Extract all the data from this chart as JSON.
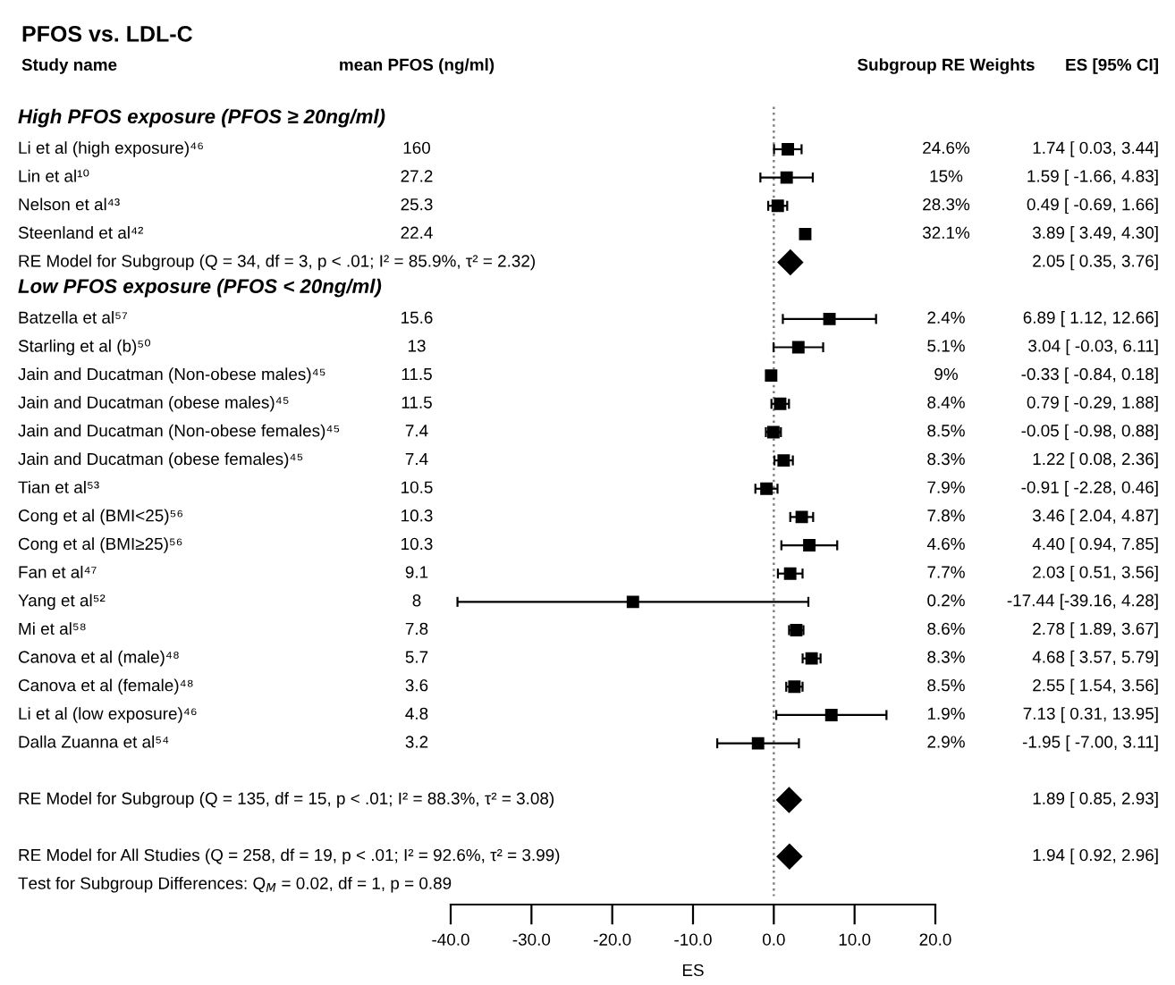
{
  "chart_data": {
    "type": "scatter",
    "orientation": "horizontal",
    "title": "PFOS vs. LDL-C",
    "xlabel": "ES",
    "categories": [
      "High PFOS exposure (PFOS ≥ 20ng/ml)",
      "Li et al (high exposure)⁴⁶",
      "Lin et al¹⁰",
      "Nelson et al⁴³",
      "Steenland et al⁴²",
      "RE Model for Subgroup (Q = 34, df = 3, p < .01; I² = 85.9%, τ² = 2.32)",
      "Low PFOS exposure (PFOS < 20ng/ml)",
      "Batzella et al⁵⁷",
      "Starling et al (b)⁵⁰",
      "Jain and Ducatman (Non-obese males)⁴⁵",
      "Jain and Ducatman (obese males)⁴⁵",
      "Jain and Ducatman (Non-obese females)⁴⁵",
      "Jain and Ducatman (obese females)⁴⁵",
      "Tian et al⁵³",
      "Cong et al (BMI<25)⁵⁶",
      "Cong et al (BMI≥25)⁵⁶",
      "Fan et al⁴⁷",
      "Yang et al⁵²",
      "Mi et al⁵⁸",
      "Canova et al (male)⁴⁸",
      "Canova et al (female)⁴⁸",
      "Li et al (low exposure)⁴⁶",
      "Dalla Zuanna et al⁵⁴",
      null,
      "RE Model for Subgroup (Q = 135, df = 15, p < .01; I² = 88.3%, τ² = 3.08)",
      null,
      "RE Model for All Studies (Q = 258, df = 19, p < .01; I² = 92.6%, τ² = 3.99)",
      "Test for Subgroup Differences: Q$_{M}$ = 0.02, df = 1, p = 0.89"
    ],
    "series": [
      {
        "marker": "square",
        "color": "#000000",
        "values": [
          null,
          1.74,
          1.59,
          0.49,
          3.89,
          null,
          null,
          6.89,
          3.04,
          -0.33,
          0.79,
          -0.05,
          1.22,
          -0.91,
          3.46,
          4.4,
          2.03,
          -17.44,
          2.78,
          4.68,
          2.55,
          7.13,
          -1.95,
          null,
          null,
          null,
          null,
          null
        ],
        "errors": [
          null,
          [
            0.03,
            3.44
          ],
          [
            -1.66,
            4.83
          ],
          [
            -0.69,
            1.66
          ],
          [
            3.49,
            4.3
          ],
          null,
          null,
          [
            1.12,
            12.66
          ],
          [
            -0.03,
            6.11
          ],
          [
            -0.84,
            0.18
          ],
          [
            -0.29,
            1.88
          ],
          [
            -0.98,
            0.88
          ],
          [
            0.08,
            2.36
          ],
          [
            -2.28,
            0.46
          ],
          [
            2.04,
            4.87
          ],
          [
            0.94,
            7.85
          ],
          [
            0.51,
            3.56
          ],
          [
            -39.16,
            4.28
          ],
          [
            1.89,
            3.67
          ],
          [
            3.57,
            5.79
          ],
          [
            1.54,
            3.56
          ],
          [
            0.31,
            13.95
          ],
          [
            -7.0,
            3.11
          ],
          null,
          null,
          null,
          null,
          null
        ],
        "value_labels": [
          null,
          "1.74 [ 0.03, 3.44]",
          "1.59 [ -1.66, 4.83]",
          "0.49 [ -0.69, 1.66]",
          "3.89 [ 3.49, 4.30]",
          null,
          null,
          "6.89 [ 1.12, 12.66]",
          "3.04 [ -0.03, 6.11]",
          "-0.33 [ -0.84, 0.18]",
          "0.79 [ -0.29, 1.88]",
          "-0.05 [ -0.98, 0.88]",
          "1.22 [ 0.08, 2.36]",
          "-0.91 [ -2.28, 0.46]",
          "3.46 [ 2.04, 4.87]",
          "4.40 [ 0.94, 7.85]",
          "2.03 [ 0.51, 3.56]",
          "-17.44 [-39.16, 4.28]",
          "2.78 [ 1.89, 3.67]",
          "4.68 [ 3.57, 5.79]",
          "2.55 [ 1.54, 3.56]",
          "7.13 [ 0.31, 13.95]",
          "-1.95 [ -7.00, 3.11]",
          null,
          null,
          null,
          null,
          null
        ]
      },
      {
        "marker": "diamond",
        "color": "#000000",
        "values": [
          null,
          null,
          null,
          null,
          null,
          2.05,
          null,
          null,
          null,
          null,
          null,
          null,
          null,
          null,
          null,
          null,
          null,
          null,
          null,
          null,
          null,
          null,
          null,
          null,
          1.89,
          null,
          1.94,
          null
        ],
        "value_labels": [
          null,
          null,
          null,
          null,
          null,
          null,
          null,
          null,
          null,
          null,
          null,
          null,
          null,
          null,
          null,
          null,
          null,
          null,
          null,
          null,
          null,
          null,
          null,
          null,
          null,
          null,
          null,
          null
        ]
      }
    ],
    "xlim": [
      -40,
      20
    ],
    "xticks": [
      {
        "value": -40,
        "label": "-40.0"
      },
      {
        "value": -30,
        "label": "-30.0"
      },
      {
        "value": -20,
        "label": "-20.0"
      },
      {
        "value": -10,
        "label": "-10.0"
      },
      {
        "value": 0,
        "label": "0.0"
      },
      {
        "value": 10,
        "label": "10.0"
      },
      {
        "value": 20,
        "label": "20.0"
      }
    ],
    "tick_labels": "x",
    "ref_lines": [
      {
        "axis": "x",
        "value": 0,
        "color": "#808080",
        "line_style": "dotted"
      }
    ],
    "annotations": [
      "Study name",
      "mean PFOS (ng/ml)",
      "Subgroup RE Weights",
      "ES [95% CI]",
      "160",
      "27.2",
      "25.3",
      "22.4",
      "15.6",
      "13",
      "11.5",
      "11.5",
      "7.4",
      "7.4",
      "10.5",
      "10.3",
      "10.3",
      "9.1",
      "8",
      "7.8",
      "5.7",
      "3.6",
      "4.8",
      "3.2",
      "24.6%",
      "15%",
      "28.3%",
      "32.1%",
      "2.4%",
      "5.1%",
      "9%",
      "8.4%",
      "8.5%",
      "8.3%",
      "7.9%",
      "7.8%",
      "4.6%",
      "7.7%",
      "0.2%",
      "8.6%",
      "8.3%",
      "8.5%",
      "1.9%",
      "2.9%",
      "2.05 [ 0.35, 3.76]",
      "1.89 [ 0.85, 2.93]",
      "1.94 [ 0.92, 2.96]"
    ]
  }
}
